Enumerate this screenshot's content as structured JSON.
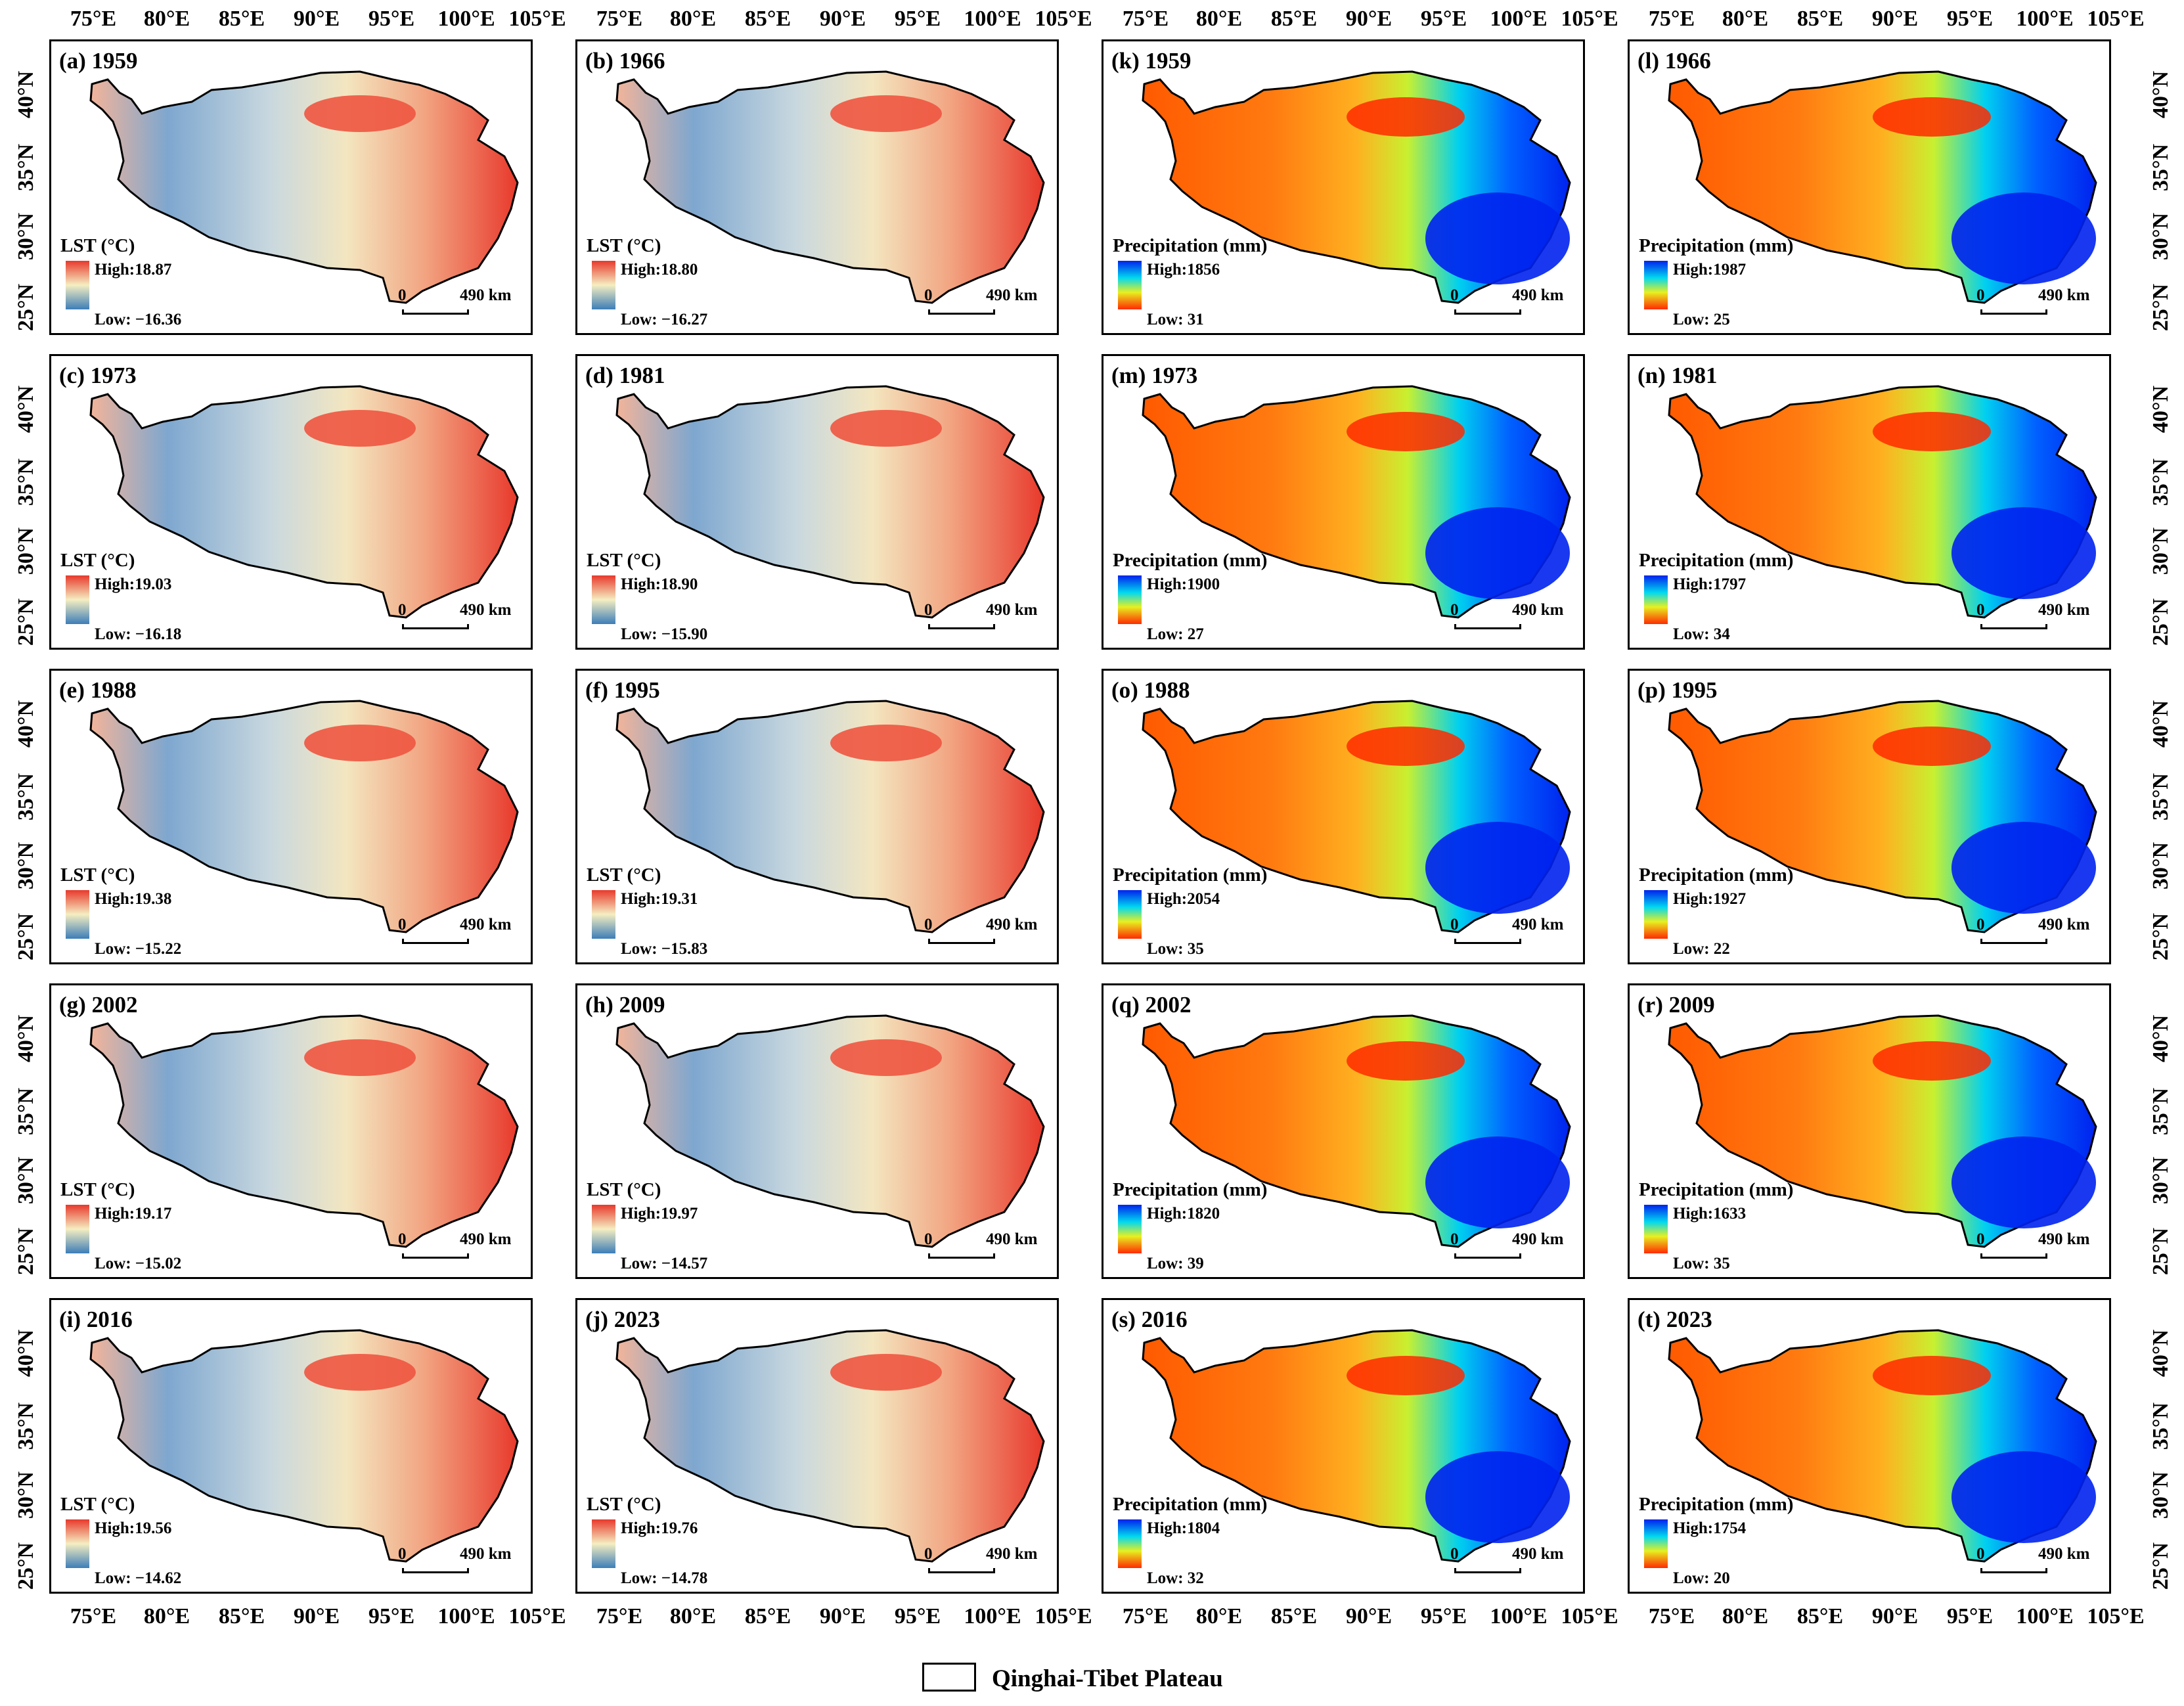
{
  "axes": {
    "lon_labels": [
      "75°E",
      "80°E",
      "85°E",
      "90°E",
      "95°E",
      "100°E",
      "105°E"
    ],
    "lat_labels": [
      "40°N",
      "35°N",
      "30°N",
      "25°N"
    ]
  },
  "colors": {
    "lst_high": "#e8392c",
    "lst_mid": "#f5eec2",
    "lst_low": "#3d7db8",
    "precip_high": "#0022ee",
    "precip_mid1": "#00d8f0",
    "precip_mid2": "#e8f020",
    "precip_low": "#ff2a00"
  },
  "scalebar": {
    "zero": "0",
    "distance": "490 km"
  },
  "panels": [
    {
      "title": "(a) 1959",
      "legend_title": "LST (°C)",
      "high": "High:18.87",
      "low": "Low: −16.36",
      "type": "lst"
    },
    {
      "title": "(b) 1966",
      "legend_title": "LST (°C)",
      "high": "High:18.80",
      "low": "Low: −16.27",
      "type": "lst"
    },
    {
      "title": "(k) 1959",
      "legend_title": "Precipitation (mm)",
      "high": "High:1856",
      "low": "Low: 31",
      "type": "precip"
    },
    {
      "title": "(l) 1966",
      "legend_title": "Precipitation (mm)",
      "high": "High:1987",
      "low": "Low: 25",
      "type": "precip"
    },
    {
      "title": "(c) 1973",
      "legend_title": "LST (°C)",
      "high": "High:19.03",
      "low": "Low: −16.18",
      "type": "lst"
    },
    {
      "title": "(d) 1981",
      "legend_title": "LST (°C)",
      "high": "High:18.90",
      "low": "Low: −15.90",
      "type": "lst"
    },
    {
      "title": "(m) 1973",
      "legend_title": "Precipitation (mm)",
      "high": "High:1900",
      "low": "Low: 27",
      "type": "precip"
    },
    {
      "title": "(n) 1981",
      "legend_title": "Precipitation (mm)",
      "high": "High:1797",
      "low": "Low: 34",
      "type": "precip"
    },
    {
      "title": "(e) 1988",
      "legend_title": "LST (°C)",
      "high": "High:19.38",
      "low": "Low: −15.22",
      "type": "lst"
    },
    {
      "title": "(f) 1995",
      "legend_title": "LST (°C)",
      "high": "High:19.31",
      "low": "Low: −15.83",
      "type": "lst"
    },
    {
      "title": "(o) 1988",
      "legend_title": "Precipitation (mm)",
      "high": "High:2054",
      "low": "Low: 35",
      "type": "precip"
    },
    {
      "title": "(p) 1995",
      "legend_title": "Precipitation (mm)",
      "high": "High:1927",
      "low": "Low: 22",
      "type": "precip"
    },
    {
      "title": "(g) 2002",
      "legend_title": "LST (°C)",
      "high": "High:19.17",
      "low": "Low: −15.02",
      "type": "lst"
    },
    {
      "title": "(h) 2009",
      "legend_title": "LST (°C)",
      "high": "High:19.97",
      "low": "Low: −14.57",
      "type": "lst"
    },
    {
      "title": "(q) 2002",
      "legend_title": "Precipitation (mm)",
      "high": "High:1820",
      "low": "Low: 39",
      "type": "precip"
    },
    {
      "title": "(r) 2009",
      "legend_title": "Precipitation (mm)",
      "high": "High:1633",
      "low": "Low: 35",
      "type": "precip"
    },
    {
      "title": "(i) 2016",
      "legend_title": "LST (°C)",
      "high": "High:19.56",
      "low": "Low: −14.62",
      "type": "lst"
    },
    {
      "title": "(j) 2023",
      "legend_title": "LST (°C)",
      "high": "High:19.76",
      "low": "Low: −14.78",
      "type": "lst"
    },
    {
      "title": "(s) 2016",
      "legend_title": "Precipitation (mm)",
      "high": "High:1804",
      "low": "Low: 32",
      "type": "precip"
    },
    {
      "title": "(t) 2023",
      "legend_title": "Precipitation (mm)",
      "high": "High:1754",
      "low": "Low: 20",
      "type": "precip"
    }
  ],
  "legend": {
    "label": "Qinghai-Tibet Plateau"
  }
}
